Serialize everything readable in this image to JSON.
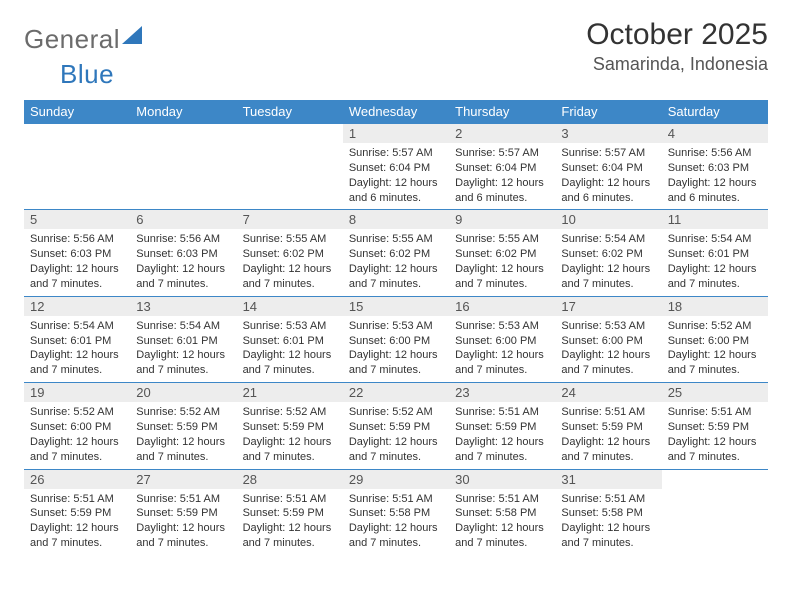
{
  "logo": {
    "part1": "General",
    "part2": "Blue"
  },
  "title": "October 2025",
  "location": "Samarinda, Indonesia",
  "colors": {
    "header_bg": "#3d87c7",
    "header_text": "#ffffff",
    "daynum_bg": "#ededed",
    "rule": "#3d87c7",
    "logo_gray": "#6b6b6b",
    "logo_blue": "#2f77bb"
  },
  "weekdays": [
    "Sunday",
    "Monday",
    "Tuesday",
    "Wednesday",
    "Thursday",
    "Friday",
    "Saturday"
  ],
  "weeks": [
    [
      {
        "n": "",
        "empty": true
      },
      {
        "n": "",
        "empty": true
      },
      {
        "n": "",
        "empty": true
      },
      {
        "n": "1",
        "sr": "5:57 AM",
        "ss": "6:04 PM",
        "dl": "12 hours and 6 minutes."
      },
      {
        "n": "2",
        "sr": "5:57 AM",
        "ss": "6:04 PM",
        "dl": "12 hours and 6 minutes."
      },
      {
        "n": "3",
        "sr": "5:57 AM",
        "ss": "6:04 PM",
        "dl": "12 hours and 6 minutes."
      },
      {
        "n": "4",
        "sr": "5:56 AM",
        "ss": "6:03 PM",
        "dl": "12 hours and 6 minutes."
      }
    ],
    [
      {
        "n": "5",
        "sr": "5:56 AM",
        "ss": "6:03 PM",
        "dl": "12 hours and 7 minutes."
      },
      {
        "n": "6",
        "sr": "5:56 AM",
        "ss": "6:03 PM",
        "dl": "12 hours and 7 minutes."
      },
      {
        "n": "7",
        "sr": "5:55 AM",
        "ss": "6:02 PM",
        "dl": "12 hours and 7 minutes."
      },
      {
        "n": "8",
        "sr": "5:55 AM",
        "ss": "6:02 PM",
        "dl": "12 hours and 7 minutes."
      },
      {
        "n": "9",
        "sr": "5:55 AM",
        "ss": "6:02 PM",
        "dl": "12 hours and 7 minutes."
      },
      {
        "n": "10",
        "sr": "5:54 AM",
        "ss": "6:02 PM",
        "dl": "12 hours and 7 minutes."
      },
      {
        "n": "11",
        "sr": "5:54 AM",
        "ss": "6:01 PM",
        "dl": "12 hours and 7 minutes."
      }
    ],
    [
      {
        "n": "12",
        "sr": "5:54 AM",
        "ss": "6:01 PM",
        "dl": "12 hours and 7 minutes."
      },
      {
        "n": "13",
        "sr": "5:54 AM",
        "ss": "6:01 PM",
        "dl": "12 hours and 7 minutes."
      },
      {
        "n": "14",
        "sr": "5:53 AM",
        "ss": "6:01 PM",
        "dl": "12 hours and 7 minutes."
      },
      {
        "n": "15",
        "sr": "5:53 AM",
        "ss": "6:00 PM",
        "dl": "12 hours and 7 minutes."
      },
      {
        "n": "16",
        "sr": "5:53 AM",
        "ss": "6:00 PM",
        "dl": "12 hours and 7 minutes."
      },
      {
        "n": "17",
        "sr": "5:53 AM",
        "ss": "6:00 PM",
        "dl": "12 hours and 7 minutes."
      },
      {
        "n": "18",
        "sr": "5:52 AM",
        "ss": "6:00 PM",
        "dl": "12 hours and 7 minutes."
      }
    ],
    [
      {
        "n": "19",
        "sr": "5:52 AM",
        "ss": "6:00 PM",
        "dl": "12 hours and 7 minutes."
      },
      {
        "n": "20",
        "sr": "5:52 AM",
        "ss": "5:59 PM",
        "dl": "12 hours and 7 minutes."
      },
      {
        "n": "21",
        "sr": "5:52 AM",
        "ss": "5:59 PM",
        "dl": "12 hours and 7 minutes."
      },
      {
        "n": "22",
        "sr": "5:52 AM",
        "ss": "5:59 PM",
        "dl": "12 hours and 7 minutes."
      },
      {
        "n": "23",
        "sr": "5:51 AM",
        "ss": "5:59 PM",
        "dl": "12 hours and 7 minutes."
      },
      {
        "n": "24",
        "sr": "5:51 AM",
        "ss": "5:59 PM",
        "dl": "12 hours and 7 minutes."
      },
      {
        "n": "25",
        "sr": "5:51 AM",
        "ss": "5:59 PM",
        "dl": "12 hours and 7 minutes."
      }
    ],
    [
      {
        "n": "26",
        "sr": "5:51 AM",
        "ss": "5:59 PM",
        "dl": "12 hours and 7 minutes."
      },
      {
        "n": "27",
        "sr": "5:51 AM",
        "ss": "5:59 PM",
        "dl": "12 hours and 7 minutes."
      },
      {
        "n": "28",
        "sr": "5:51 AM",
        "ss": "5:59 PM",
        "dl": "12 hours and 7 minutes."
      },
      {
        "n": "29",
        "sr": "5:51 AM",
        "ss": "5:58 PM",
        "dl": "12 hours and 7 minutes."
      },
      {
        "n": "30",
        "sr": "5:51 AM",
        "ss": "5:58 PM",
        "dl": "12 hours and 7 minutes."
      },
      {
        "n": "31",
        "sr": "5:51 AM",
        "ss": "5:58 PM",
        "dl": "12 hours and 7 minutes."
      },
      {
        "n": "",
        "empty": true
      }
    ]
  ],
  "labels": {
    "sunrise": "Sunrise:",
    "sunset": "Sunset:",
    "daylight": "Daylight:"
  }
}
